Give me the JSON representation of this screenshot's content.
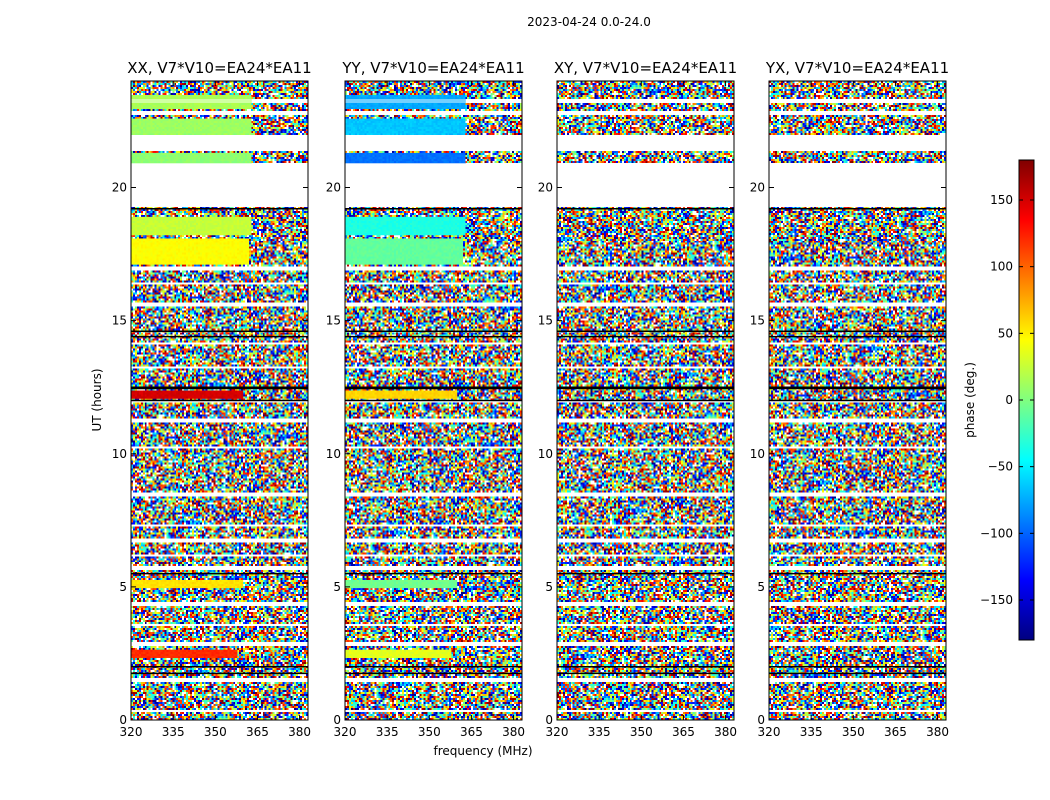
{
  "chart_data": {
    "type": "heatmap",
    "suptitle": "2023-04-24 0.0-24.0",
    "xlabel": "frequency (MHz)",
    "ylabel": "UT (hours)",
    "xlim": [
      320,
      383
    ],
    "ylim": [
      0,
      24
    ],
    "xticks": [
      320,
      335,
      350,
      365,
      380
    ],
    "yticks": [
      0,
      5,
      10,
      15,
      20
    ],
    "colorbar": {
      "label": "phase (deg.)",
      "range": [
        -180,
        180
      ],
      "ticks": [
        150,
        100,
        50,
        0,
        -50,
        -100,
        -150
      ],
      "tick_labels": [
        "150",
        "100",
        "50",
        "0",
        "−50",
        "−100",
        "−150"
      ],
      "colormap": "jet"
    },
    "panels": [
      {
        "title": "XX, V7*V10=EA24*EA11",
        "coherent_bands": [
          {
            "t0": 22.95,
            "t1": 23.45,
            "phase": 15,
            "f_end": 363
          },
          {
            "t0": 22.0,
            "t1": 22.6,
            "phase": 10,
            "f_end": 363
          },
          {
            "t0": 20.9,
            "t1": 21.3,
            "phase": 5,
            "f_end": 363
          },
          {
            "t0": 18.2,
            "t1": 18.9,
            "phase": 25,
            "f_end": 363
          },
          {
            "t0": 17.1,
            "t1": 18.1,
            "phase": 45,
            "f_end": 362
          },
          {
            "t0": 12.05,
            "t1": 12.35,
            "phase": 150,
            "f_end": 360
          },
          {
            "t0": 4.95,
            "t1": 5.25,
            "phase": 55,
            "f_end": 360
          },
          {
            "t0": 2.35,
            "t1": 2.65,
            "phase": 120,
            "f_end": 358
          }
        ]
      },
      {
        "title": "YY, V7*V10=EA24*EA11",
        "coherent_bands": [
          {
            "t0": 22.95,
            "t1": 23.45,
            "phase": -75,
            "f_end": 363
          },
          {
            "t0": 22.0,
            "t1": 22.6,
            "phase": -65,
            "f_end": 363
          },
          {
            "t0": 20.9,
            "t1": 21.3,
            "phase": -95,
            "f_end": 363
          },
          {
            "t0": 18.2,
            "t1": 18.9,
            "phase": -35,
            "f_end": 363
          },
          {
            "t0": 17.1,
            "t1": 18.1,
            "phase": -10,
            "f_end": 362
          },
          {
            "t0": 12.05,
            "t1": 12.35,
            "phase": 60,
            "f_end": 360
          },
          {
            "t0": 4.95,
            "t1": 5.25,
            "phase": -5,
            "f_end": 360
          },
          {
            "t0": 2.35,
            "t1": 2.65,
            "phase": 35,
            "f_end": 358
          }
        ]
      },
      {
        "title": "XY, V7*V10=EA24*EA11",
        "coherent_bands": []
      },
      {
        "title": "YX, V7*V10=EA24*EA11",
        "coherent_bands": []
      }
    ],
    "blank_time_ranges": [
      [
        23.2,
        23.35
      ],
      [
        22.75,
        22.85
      ],
      [
        21.4,
        22.0
      ],
      [
        20.35,
        20.9
      ],
      [
        19.25,
        20.3
      ],
      [
        16.9,
        17.0
      ],
      [
        16.35,
        16.45
      ],
      [
        15.55,
        15.65
      ],
      [
        14.1,
        14.2
      ],
      [
        13.2,
        13.3
      ],
      [
        11.9,
        12.0
      ],
      [
        11.2,
        11.3
      ],
      [
        10.2,
        10.3
      ],
      [
        8.4,
        8.55
      ],
      [
        7.25,
        7.35
      ],
      [
        6.7,
        6.85
      ],
      [
        6.15,
        6.25
      ],
      [
        5.65,
        5.75
      ],
      [
        4.3,
        4.45
      ],
      [
        3.5,
        3.6
      ],
      [
        2.8,
        2.9
      ],
      [
        1.45,
        1.55
      ],
      [
        0.3,
        0.38
      ]
    ],
    "dark_time_lines": [
      19.2,
      14.6,
      14.4,
      12.5,
      12.45,
      12.0,
      5.5,
      2.0,
      1.75
    ]
  }
}
